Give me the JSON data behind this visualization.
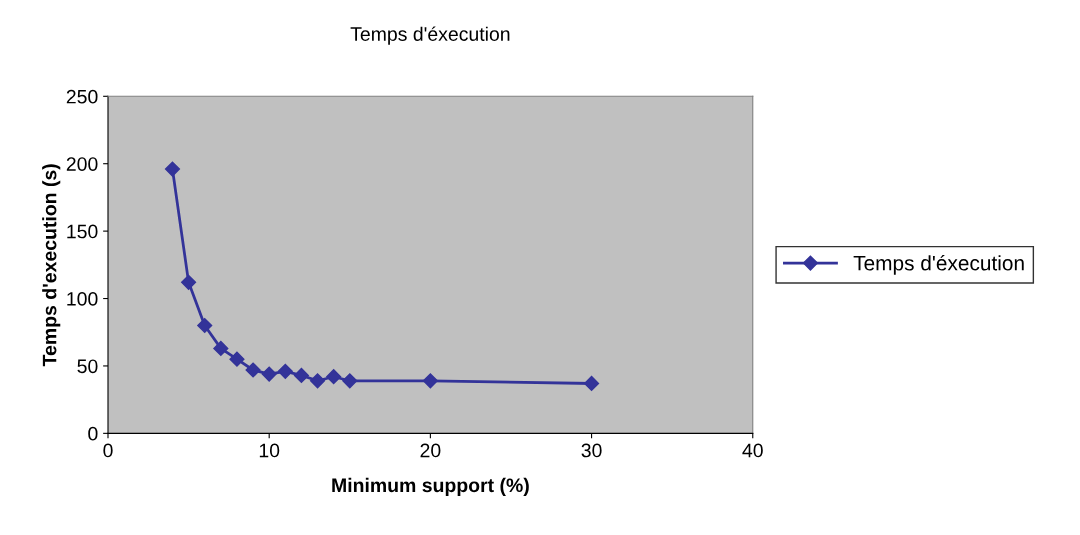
{
  "chart_data": {
    "type": "line",
    "title": "Temps d'éxecution",
    "xlabel": "Minimum support (%)",
    "ylabel": "Temps d'execution (s)",
    "x": [
      4,
      5,
      6,
      7,
      8,
      9,
      10,
      11,
      12,
      13,
      14,
      15,
      20,
      30
    ],
    "series": [
      {
        "name": "Temps d'éxecution",
        "color": "#333399",
        "values": [
          196,
          112,
          80,
          63,
          55,
          47,
          44,
          46,
          43,
          39,
          42,
          39,
          39,
          37
        ]
      }
    ],
    "xlim": [
      0,
      40
    ],
    "xticks": [
      0,
      10,
      20,
      30,
      40
    ],
    "ylim": [
      0,
      250
    ],
    "yticks": [
      0,
      50,
      100,
      150,
      200,
      250
    ],
    "grid": false,
    "legend": "right",
    "marker": "diamond",
    "line_style": "solid"
  }
}
